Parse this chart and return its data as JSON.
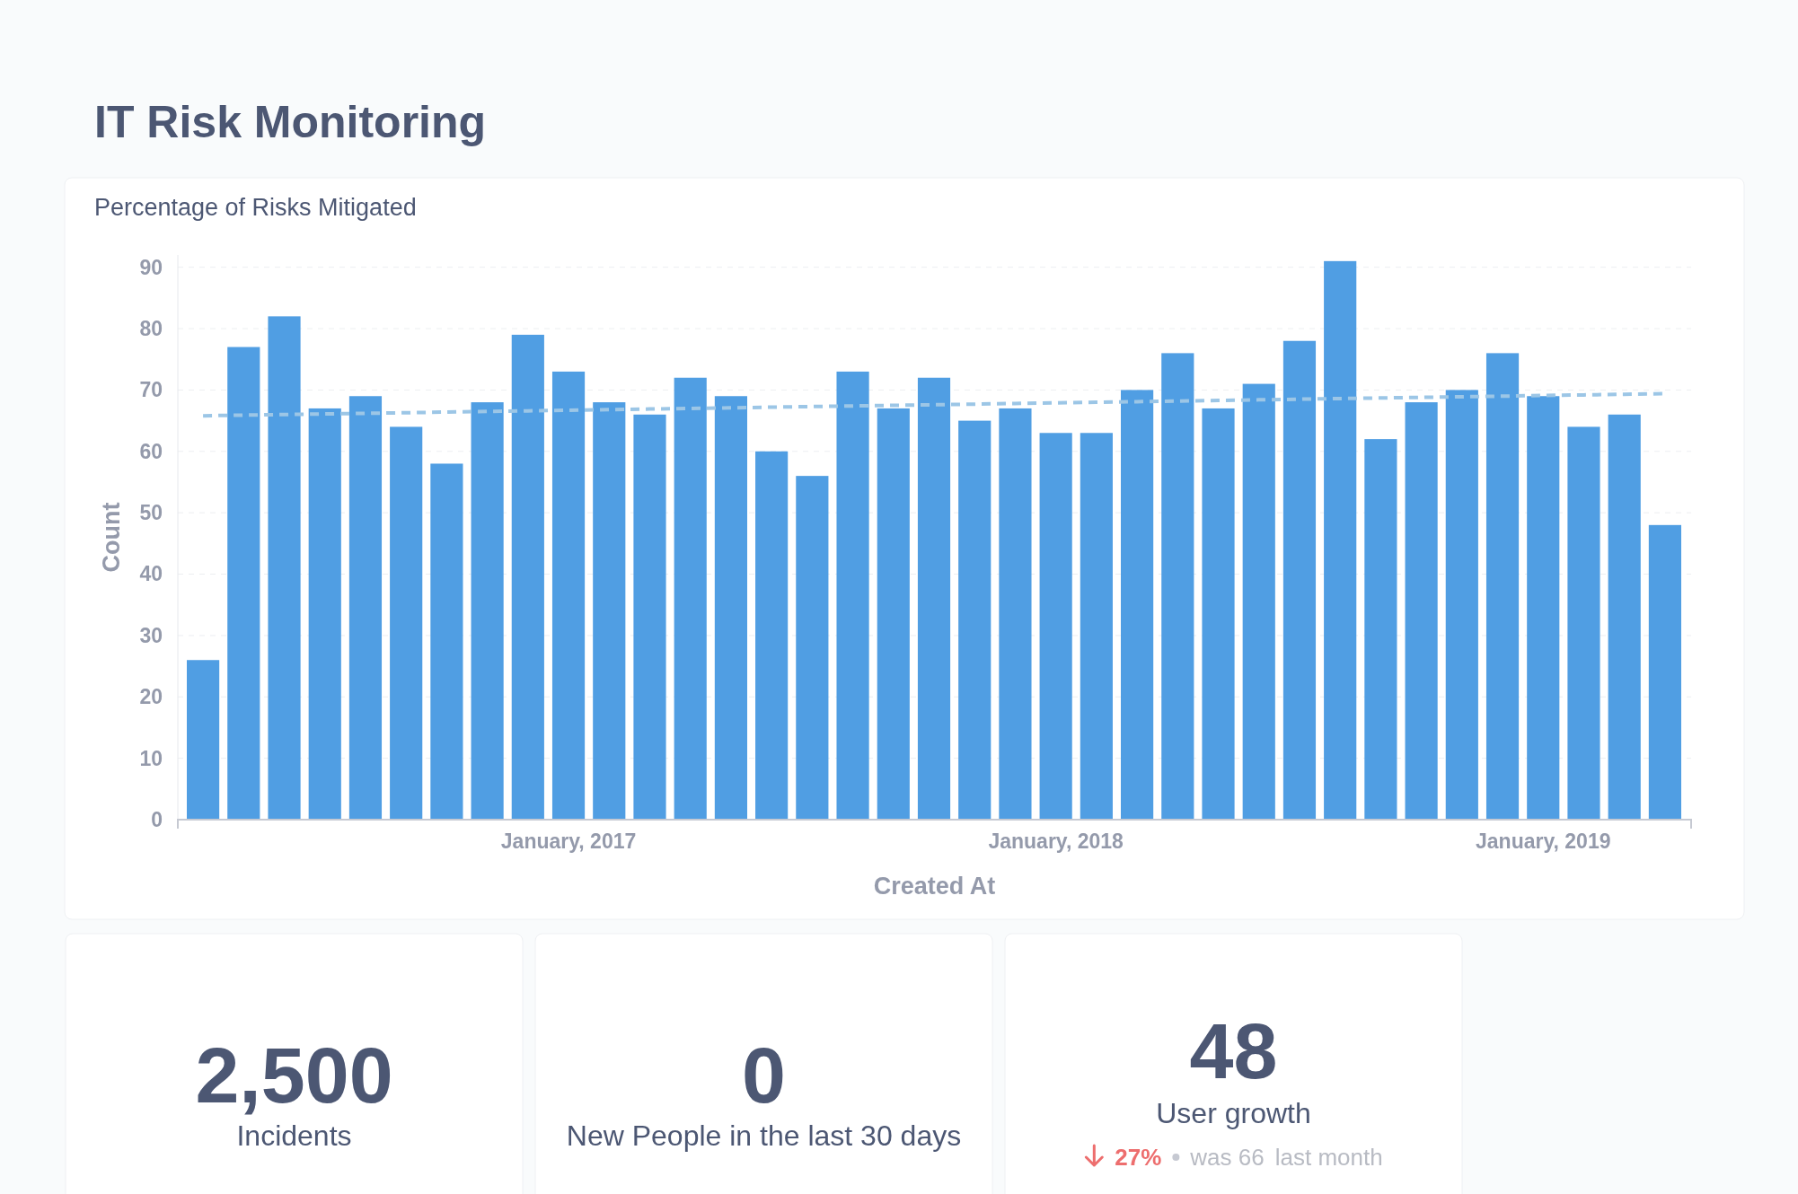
{
  "chart_data": [
    {
      "type": "bar",
      "title": "IT Risk Monitoring",
      "subtitle": "Percentage of Risks Mitigated",
      "xlabel": "Created At",
      "ylabel": "Count",
      "categories": [
        null,
        null,
        null,
        null,
        null,
        null,
        null,
        null,
        null,
        "January, 2017",
        null,
        null,
        null,
        null,
        null,
        null,
        null,
        null,
        null,
        null,
        null,
        "January, 2018",
        null,
        null,
        null,
        null,
        null,
        null,
        null,
        null,
        null,
        null,
        null,
        "January, 2019",
        null,
        null,
        null
      ],
      "series": [
        {
          "type": "bar",
          "color": "#509ee3",
          "values": [
            26,
            77,
            82,
            67,
            69,
            64,
            58,
            68,
            79,
            73,
            68,
            66,
            72,
            69,
            60,
            56,
            73,
            67,
            72,
            65,
            67,
            63,
            63,
            70,
            76,
            67,
            71,
            78,
            91,
            62,
            68,
            70,
            76,
            69,
            64,
            66,
            48
          ]
        },
        {
          "type": "line",
          "color": "#9cc6e6",
          "line_style": "dashed",
          "marker": "none",
          "values": [
            65.8,
            65.9,
            66.0,
            66.1,
            66.2,
            66.3,
            66.4,
            66.5,
            66.6,
            66.7,
            66.8,
            66.9,
            67.0,
            67.1,
            67.2,
            67.3,
            67.4,
            67.5,
            67.6,
            67.7,
            67.8,
            67.9,
            68.0,
            68.1,
            68.2,
            68.3,
            68.4,
            68.5,
            68.6,
            68.7,
            68.8,
            68.9,
            69.0,
            69.1,
            69.2,
            69.3,
            69.4
          ]
        }
      ],
      "ylim": [
        0,
        92
      ],
      "yticks": [
        0,
        10,
        20,
        30,
        40,
        50,
        60,
        70,
        80,
        90
      ],
      "grid": "y"
    },
    {
      "type": "other",
      "title": "2,500",
      "subtitle": "Incidents"
    },
    {
      "type": "other",
      "title": "0",
      "subtitle": "New People in the last 30 days"
    },
    {
      "type": "other",
      "title": "48",
      "subtitle": "User growth",
      "annotations": [
        "27%",
        "was 66",
        "last month"
      ]
    }
  ]
}
